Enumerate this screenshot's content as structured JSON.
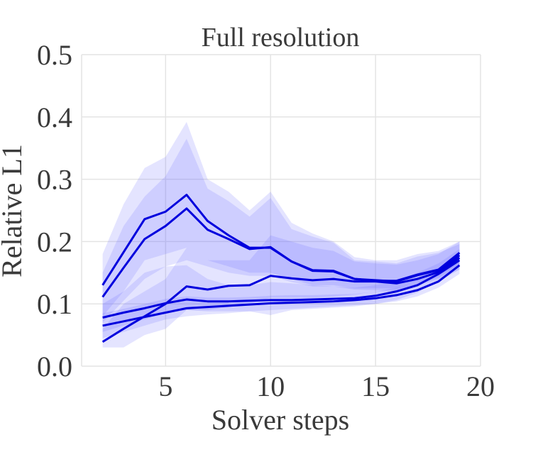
{
  "chart_data": {
    "type": "line",
    "title": "Full resolution",
    "xlabel": "Solver steps",
    "ylabel": "Relative L1",
    "xlim": [
      1,
      20
    ],
    "ylim": [
      0,
      0.5
    ],
    "xticks": [
      5,
      10,
      15,
      20
    ],
    "xtick_labels": [
      "5",
      "10",
      "15",
      "20"
    ],
    "yticks": [
      0,
      0.1,
      0.2,
      0.3,
      0.4,
      0.5
    ],
    "ytick_labels": [
      "0.0",
      "0.1",
      "0.2",
      "0.3",
      "0.4",
      "0.5"
    ],
    "grid": true,
    "line_color": "#0000dd",
    "band_color": "#6b6bff",
    "band_opacity": 0.18,
    "x": [
      2,
      3,
      4,
      5,
      6,
      7,
      8,
      9,
      10,
      11,
      12,
      13,
      14,
      15,
      16,
      17,
      18,
      19
    ],
    "series": [
      {
        "values": [
          0.13,
          0.183,
          0.236,
          0.248,
          0.275,
          0.233,
          0.21,
          0.19,
          0.19,
          0.168,
          0.153,
          0.152,
          0.14,
          0.137,
          0.137,
          0.147,
          0.155,
          0.182
        ],
        "lower": [
          0.08,
          0.12,
          0.17,
          0.18,
          0.19,
          0.17,
          0.16,
          0.15,
          0.15,
          0.14,
          0.13,
          0.13,
          0.125,
          0.125,
          0.125,
          0.135,
          0.145,
          0.165
        ],
        "upper": [
          0.18,
          0.26,
          0.318,
          0.336,
          0.392,
          0.3,
          0.28,
          0.25,
          0.28,
          0.23,
          0.213,
          0.2,
          0.175,
          0.17,
          0.17,
          0.18,
          0.185,
          0.2
        ]
      },
      {
        "values": [
          0.111,
          0.158,
          0.204,
          0.225,
          0.253,
          0.219,
          0.204,
          0.188,
          0.191,
          0.168,
          0.154,
          0.153,
          0.14,
          0.138,
          0.136,
          0.146,
          0.154,
          0.178
        ],
        "lower": [
          0.07,
          0.105,
          0.14,
          0.16,
          0.17,
          0.16,
          0.15,
          0.145,
          0.145,
          0.135,
          0.128,
          0.128,
          0.123,
          0.122,
          0.122,
          0.132,
          0.142,
          0.16
        ],
        "upper": [
          0.15,
          0.225,
          0.272,
          0.305,
          0.365,
          0.285,
          0.265,
          0.24,
          0.27,
          0.22,
          0.208,
          0.198,
          0.17,
          0.168,
          0.165,
          0.176,
          0.182,
          0.196
        ]
      },
      {
        "values": [
          0.039,
          0.06,
          0.08,
          0.1,
          0.128,
          0.123,
          0.129,
          0.13,
          0.145,
          0.141,
          0.138,
          0.14,
          0.136,
          0.136,
          0.133,
          0.14,
          0.151,
          0.174
        ],
        "lower": [
          0.03,
          0.03,
          0.05,
          0.06,
          0.09,
          0.09,
          0.095,
          0.1,
          0.11,
          0.11,
          0.11,
          0.112,
          0.115,
          0.12,
          0.12,
          0.13,
          0.14,
          0.155
        ],
        "upper": [
          0.06,
          0.1,
          0.12,
          0.14,
          0.19,
          0.17,
          0.17,
          0.17,
          0.21,
          0.2,
          0.19,
          0.185,
          0.168,
          0.165,
          0.163,
          0.17,
          0.18,
          0.2
        ]
      },
      {
        "values": [
          0.078,
          0.086,
          0.093,
          0.101,
          0.107,
          0.104,
          0.104,
          0.105,
          0.106,
          0.106,
          0.107,
          0.108,
          0.109,
          0.113,
          0.12,
          0.13,
          0.148,
          0.17
        ],
        "lower": [
          0.055,
          0.065,
          0.075,
          0.085,
          0.09,
          0.088,
          0.088,
          0.088,
          0.082,
          0.09,
          0.092,
          0.094,
          0.096,
          0.1,
          0.106,
          0.118,
          0.136,
          0.155
        ],
        "upper": [
          0.1,
          0.12,
          0.15,
          0.16,
          0.162,
          0.14,
          0.13,
          0.13,
          0.135,
          0.133,
          0.13,
          0.128,
          0.126,
          0.13,
          0.138,
          0.15,
          0.165,
          0.188
        ]
      },
      {
        "values": [
          0.065,
          0.072,
          0.079,
          0.086,
          0.093,
          0.095,
          0.097,
          0.099,
          0.101,
          0.102,
          0.103,
          0.104,
          0.106,
          0.109,
          0.114,
          0.122,
          0.136,
          0.162
        ],
        "lower": [
          0.045,
          0.055,
          0.065,
          0.075,
          0.08,
          0.083,
          0.085,
          0.088,
          0.09,
          0.092,
          0.094,
          0.096,
          0.098,
          0.1,
          0.104,
          0.112,
          0.126,
          0.148
        ],
        "upper": [
          0.085,
          0.092,
          0.1,
          0.108,
          0.112,
          0.11,
          0.11,
          0.111,
          0.113,
          0.114,
          0.114,
          0.115,
          0.116,
          0.12,
          0.126,
          0.134,
          0.15,
          0.178
        ]
      }
    ]
  }
}
